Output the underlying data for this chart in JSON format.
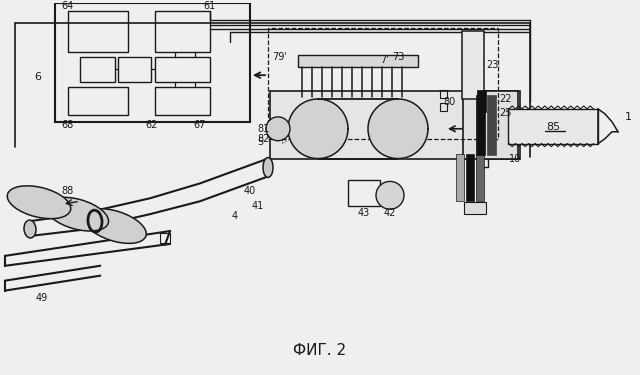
{
  "bg_color": "#efefef",
  "line_color": "#1a1a1a",
  "title": "ФИГ. 2",
  "title_fontsize": 11,
  "fig_width": 6.4,
  "fig_height": 3.75,
  "dpi": 100
}
